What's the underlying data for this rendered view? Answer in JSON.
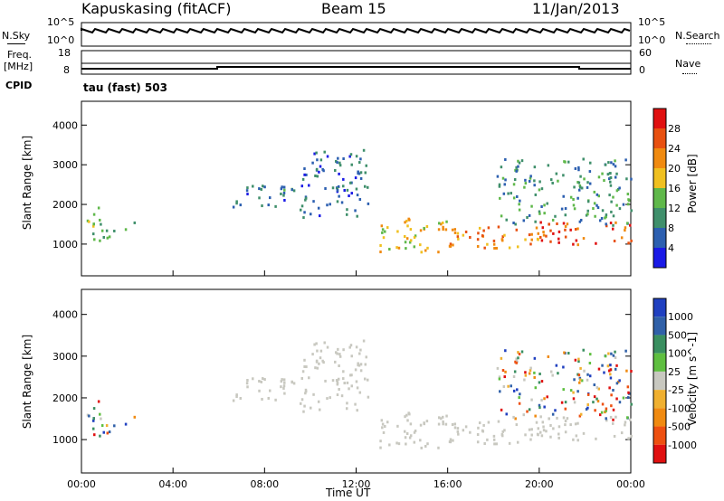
{
  "header": {
    "station": "Kapuskasing (fitACF)",
    "beam": "Beam 15",
    "date": "11/Jan/2013"
  },
  "params": {
    "nsky_label": "N.Sky",
    "nsky_ticks": [
      "10^5",
      "10^0"
    ],
    "nsearch_label": "N.Search",
    "nsearch_ticks": [
      "10^5",
      "10^0"
    ],
    "freq_label": "Freq.",
    "freq_unit": "[MHz]",
    "freq_ticks": [
      "18",
      "8"
    ],
    "nave_label": "Nave",
    "nave_ticks": [
      "60",
      "0"
    ],
    "cpid_label": "CPID",
    "cpid_value": "tau (fast) 503"
  },
  "colors": {
    "power": [
      "#1a1ae6",
      "#2c5fb0",
      "#3f8f6b",
      "#5fb84a",
      "#f0c020",
      "#f08a10",
      "#e85010",
      "#e01010"
    ],
    "velocity": [
      "#e01010",
      "#ee5010",
      "#f08a10",
      "#f0b030",
      "#c8c8c0",
      "#5fbf40",
      "#3a8f60",
      "#3060a8",
      "#2040c0"
    ],
    "groundscatter": "#c8c8c0"
  },
  "chart_data": [
    {
      "type": "heatmap",
      "name": "power",
      "ylabel": "Slant Range [km]",
      "yticks": [
        "1000",
        "2000",
        "3000",
        "4000"
      ],
      "ylim": [
        200,
        4600
      ],
      "xlim": [
        0,
        24
      ],
      "colorbar_label": "Power [dB]",
      "colorbar_ticks": [
        "4",
        "8",
        "12",
        "16",
        "20",
        "24",
        "28"
      ],
      "colorbar_range": [
        0,
        32
      ],
      "regions": [
        {
          "t0": 0.2,
          "t1": 1.5,
          "r0": 1000,
          "r1": 1400,
          "level": 10
        },
        {
          "t0": 0.0,
          "t1": 0.8,
          "r0": 1400,
          "r1": 2000,
          "level": 13
        },
        {
          "t0": 1.5,
          "t1": 2.3,
          "r0": 1400,
          "r1": 1700,
          "level": 12
        },
        {
          "t0": 6.5,
          "t1": 9.5,
          "r0": 1900,
          "r1": 2500,
          "level": 6
        },
        {
          "t0": 9.5,
          "t1": 12.5,
          "r0": 1700,
          "r1": 3400,
          "level": 5
        },
        {
          "t0": 13.0,
          "t1": 16.0,
          "r0": 800,
          "r1": 1700,
          "level": 16
        },
        {
          "t0": 16.0,
          "t1": 20.0,
          "r0": 900,
          "r1": 1500,
          "level": 20
        },
        {
          "t0": 20.0,
          "t1": 24.0,
          "r0": 1000,
          "r1": 1600,
          "level": 24
        },
        {
          "t0": 18.0,
          "t1": 24.0,
          "r0": 1500,
          "r1": 3200,
          "level": 8
        }
      ]
    },
    {
      "type": "heatmap",
      "name": "velocity",
      "xlabel": "Time UT",
      "ylabel": "Slant Range [km]",
      "yticks": [
        "1000",
        "2000",
        "3000",
        "4000"
      ],
      "xticks": [
        "00:00",
        "04:00",
        "08:00",
        "12:00",
        "16:00",
        "20:00",
        "00:00"
      ],
      "ylim": [
        200,
        4600
      ],
      "xlim": [
        0,
        24
      ],
      "colorbar_label": "Velocity [m s^-1]",
      "colorbar_ticks": [
        "1000",
        "500",
        "100",
        "25",
        "-25",
        "-100",
        "-500",
        "-1000"
      ]
    }
  ]
}
